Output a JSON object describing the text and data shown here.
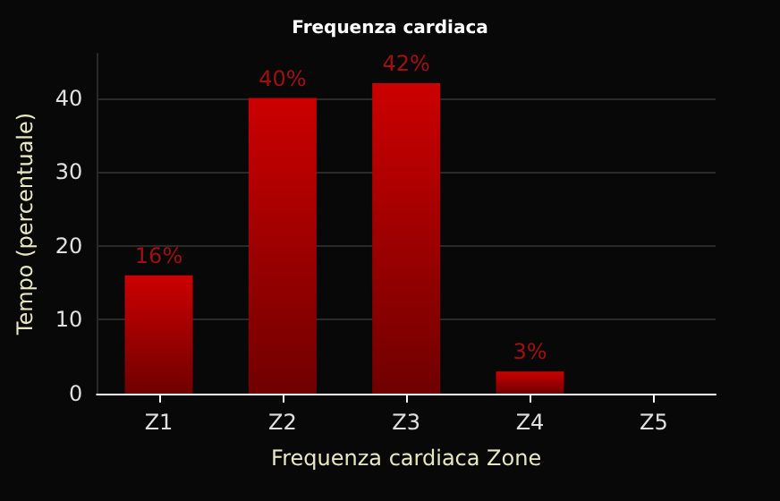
{
  "chart_data": {
    "type": "bar",
    "title": "Frequenza cardiaca",
    "xlabel": "Frequenza cardiaca Zone",
    "ylabel": "Tempo (percentuale)",
    "categories": [
      "Z1",
      "Z2",
      "Z3",
      "Z4",
      "Z5"
    ],
    "values": [
      16,
      40,
      42,
      3,
      null
    ],
    "value_labels": [
      "16%",
      "40%",
      "42%",
      "3%",
      null
    ],
    "color": "#cc0000",
    "ylim": [
      0,
      46
    ],
    "yticks": [
      0,
      10,
      20,
      30,
      40
    ],
    "grid": "y"
  }
}
